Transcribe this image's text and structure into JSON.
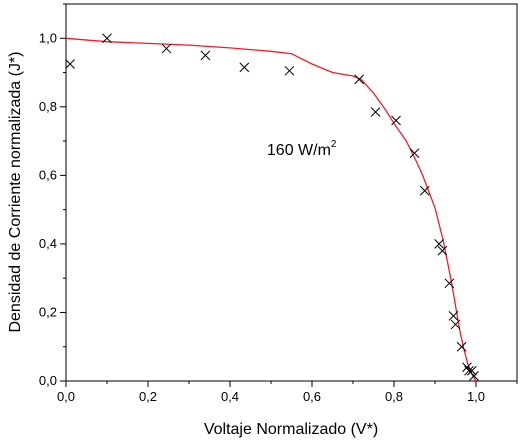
{
  "chart_data": {
    "type": "scatter",
    "xlabel": "Voltaje Normalizado (V*)",
    "ylabel": "Densidad de Corriente normalizada (J*)",
    "xlim": [
      0.0,
      1.1
    ],
    "ylim": [
      0.0,
      1.1
    ],
    "x_ticks": [
      "0,0",
      "0,2",
      "0,4",
      "0,6",
      "0,8",
      "1,0"
    ],
    "y_ticks": [
      "0,0",
      "0,2",
      "0,4",
      "0,6",
      "0,8",
      "1,0"
    ],
    "x_tick_values": [
      0.0,
      0.2,
      0.4,
      0.6,
      0.8,
      1.0
    ],
    "y_tick_values": [
      0.0,
      0.2,
      0.4,
      0.6,
      0.8,
      1.0
    ],
    "annotation": {
      "text": "160 W/m",
      "superscript": "2",
      "x": 0.49,
      "y": 0.66
    },
    "colors": {
      "line": "#e8202a",
      "marker": "#000000"
    },
    "series": [
      {
        "kind": "line",
        "x": [
          0.0,
          0.1,
          0.2,
          0.3,
          0.4,
          0.5,
          0.55,
          0.6,
          0.65,
          0.7,
          0.72,
          0.75,
          0.78,
          0.8,
          0.83,
          0.85,
          0.87,
          0.9,
          0.92,
          0.94,
          0.95,
          0.96,
          0.97,
          0.98,
          0.99,
          1.0
        ],
        "y": [
          1.0,
          0.99,
          0.985,
          0.98,
          0.972,
          0.962,
          0.955,
          0.925,
          0.9,
          0.89,
          0.88,
          0.84,
          0.79,
          0.752,
          0.7,
          0.652,
          0.6,
          0.505,
          0.41,
          0.29,
          0.22,
          0.15,
          0.095,
          0.05,
          0.02,
          0.0
        ]
      },
      {
        "kind": "scatter",
        "marker": "x",
        "x": [
          0.01,
          0.1,
          0.245,
          0.34,
          0.435,
          0.545,
          0.715,
          0.755,
          0.805,
          0.85,
          0.875,
          0.91,
          0.918,
          0.935,
          0.945,
          0.95,
          0.965,
          0.978,
          0.983,
          0.99,
          0.995
        ],
        "y": [
          0.925,
          1.0,
          0.97,
          0.95,
          0.915,
          0.905,
          0.88,
          0.785,
          0.76,
          0.665,
          0.555,
          0.4,
          0.38,
          0.285,
          0.19,
          0.165,
          0.1,
          0.04,
          0.03,
          0.03,
          0.015
        ]
      }
    ]
  }
}
